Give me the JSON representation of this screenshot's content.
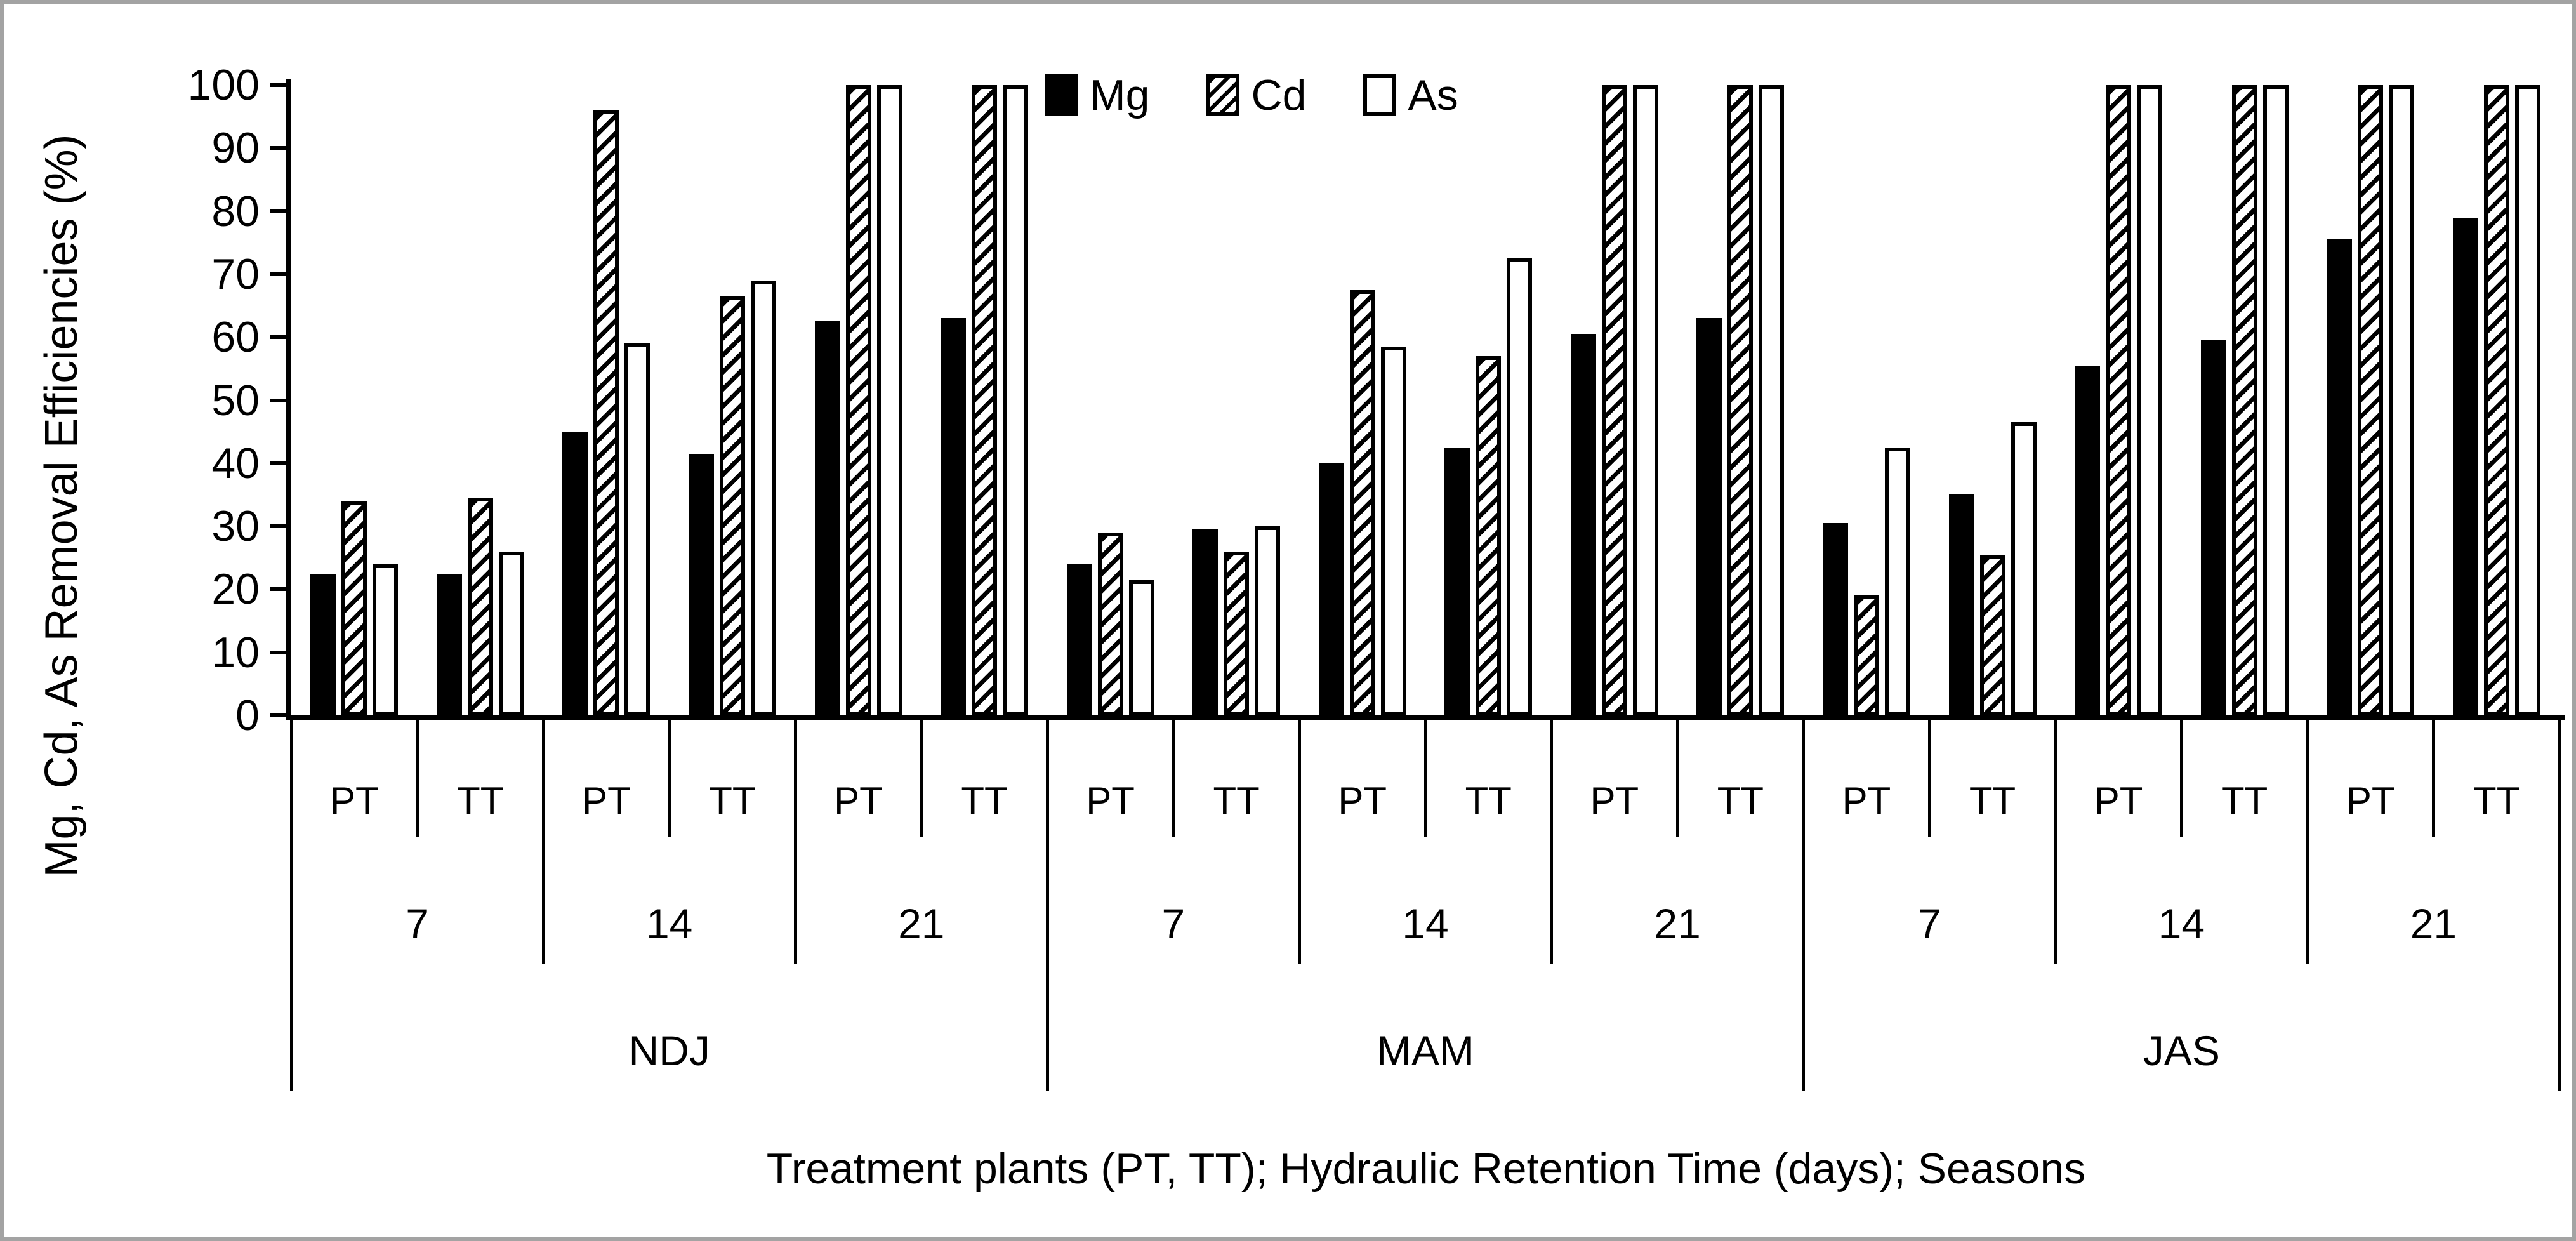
{
  "figure": {
    "background_color": "#ffffff",
    "border_color": "#a3a3a3",
    "ink_color": "#000000"
  },
  "chart_data": {
    "type": "bar",
    "title": "",
    "ylabel": "Mg, Cd, As Removal Efficiencies (%)",
    "xlabel": "Treatment plants (PT, TT); Hydraulic Retention Time (days); Seasons",
    "ylim": [
      0,
      100
    ],
    "yticks": [
      0,
      10,
      20,
      30,
      40,
      50,
      60,
      70,
      80,
      90,
      100
    ],
    "grid": false,
    "legend_position": "top-center",
    "axis_hierarchy": {
      "plants": [
        "PT",
        "TT"
      ],
      "hrt_days": [
        "7",
        "14",
        "21"
      ],
      "seasons": [
        "NDJ",
        "MAM",
        "JAS"
      ]
    },
    "group_order_note": "18 groups: for each season (NDJ, MAM, JAS), for each HRT (7, 14, 21), plants PT then TT",
    "series": [
      {
        "name": "Mg",
        "style": "solid-black",
        "values": [
          22.5,
          22.5,
          45,
          41.5,
          62.5,
          63,
          24,
          29.5,
          40,
          42.5,
          60.5,
          63,
          30.5,
          35,
          55.5,
          59.5,
          75.5,
          79
        ]
      },
      {
        "name": "Cd",
        "style": "diagonal-hatch",
        "values": [
          34,
          34.5,
          96,
          66.5,
          100,
          100,
          29,
          26,
          67.5,
          57,
          100,
          100,
          19,
          25.5,
          100,
          100,
          100,
          100
        ]
      },
      {
        "name": "As",
        "style": "white-outline",
        "values": [
          24,
          26,
          59,
          69,
          100,
          100,
          21.5,
          30,
          58.5,
          72.5,
          100,
          100,
          42.5,
          46.5,
          100,
          100,
          100,
          100
        ]
      }
    ]
  }
}
